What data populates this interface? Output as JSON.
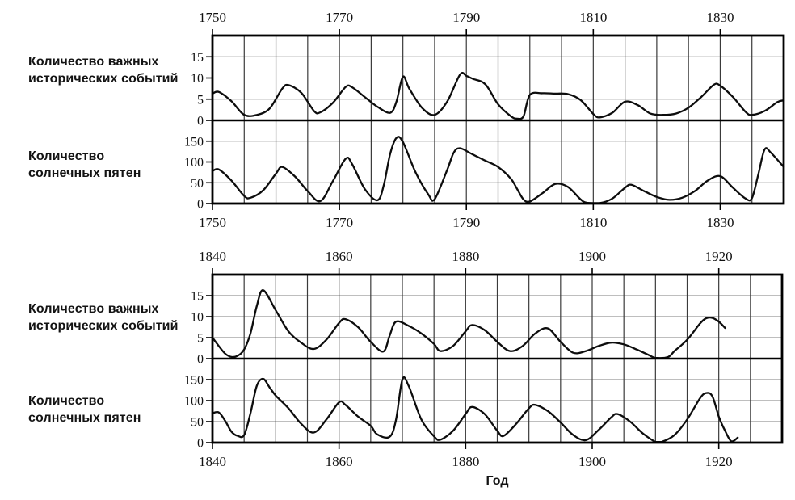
{
  "figure": {
    "xlabel": "Год",
    "row_labels": {
      "events": {
        "line1": "Количество важных",
        "line2": "исторических событий"
      },
      "sunspots": {
        "line1": "Количество",
        "line2": "солнечных пятен"
      }
    },
    "colors": {
      "background": "#ffffff",
      "curve": "#0d0d0d",
      "border": "#000000",
      "grid_vertical": "#3a3a3a",
      "grid_horizontal": "#7d7d7d",
      "text": "#131313"
    }
  },
  "chart_data": [
    {
      "type": "line",
      "panel": "1750-1840",
      "x_range": [
        1750,
        1840
      ],
      "x_labeled_ticks": [
        1750,
        1770,
        1790,
        1810,
        1830
      ],
      "x_grid_step": 5,
      "grid": true,
      "subplots": [
        {
          "name": "historical-events",
          "ylabel": "Количество важных исторических событий",
          "ylim": [
            0,
            20
          ],
          "yticks": [
            15,
            10,
            5,
            0
          ],
          "y_grid_step": 5,
          "series": [
            [
              1750,
              6.3
            ],
            [
              1751,
              6.7
            ],
            [
              1753,
              4.5
            ],
            [
              1755,
              1.3
            ],
            [
              1757,
              1.3
            ],
            [
              1759,
              2.8
            ],
            [
              1761,
              7.5
            ],
            [
              1762,
              8.3
            ],
            [
              1764,
              6.5
            ],
            [
              1766,
              2.2
            ],
            [
              1767,
              1.9
            ],
            [
              1769,
              4.2
            ],
            [
              1771,
              7.9
            ],
            [
              1772,
              7.8
            ],
            [
              1774,
              5.5
            ],
            [
              1776,
              3.2
            ],
            [
              1778,
              1.8
            ],
            [
              1779,
              4.5
            ],
            [
              1780,
              10.3
            ],
            [
              1781,
              7.5
            ],
            [
              1783,
              3
            ],
            [
              1785,
              1.3
            ],
            [
              1787,
              4.5
            ],
            [
              1789,
              10.8
            ],
            [
              1790,
              10.5
            ],
            [
              1791,
              9.8
            ],
            [
              1793,
              8.5
            ],
            [
              1795,
              3.8
            ],
            [
              1797,
              1
            ],
            [
              1798,
              0.4
            ],
            [
              1799,
              0.9
            ],
            [
              1800,
              6
            ],
            [
              1802,
              6.4
            ],
            [
              1804,
              6.3
            ],
            [
              1806,
              6.2
            ],
            [
              1808,
              4.8
            ],
            [
              1810,
              1.5
            ],
            [
              1811,
              0.7
            ],
            [
              1813,
              1.8
            ],
            [
              1815,
              4.4
            ],
            [
              1817,
              3.6
            ],
            [
              1819,
              1.6
            ],
            [
              1821,
              1.3
            ],
            [
              1823,
              1.6
            ],
            [
              1825,
              3
            ],
            [
              1827,
              5.5
            ],
            [
              1829,
              8.4
            ],
            [
              1830,
              8.2
            ],
            [
              1832,
              5.5
            ],
            [
              1834,
              2
            ],
            [
              1835,
              1.3
            ],
            [
              1837,
              2.2
            ],
            [
              1839,
              4.3
            ],
            [
              1840,
              4.7
            ]
          ]
        },
        {
          "name": "sunspots",
          "ylabel": "Количество солнечных пятен",
          "ylim": [
            0,
            200
          ],
          "yticks": [
            150,
            100,
            50,
            0
          ],
          "y_grid_step": 50,
          "series": [
            [
              1750,
              78
            ],
            [
              1751,
              82
            ],
            [
              1753,
              55
            ],
            [
              1755,
              18
            ],
            [
              1756,
              14
            ],
            [
              1758,
              32
            ],
            [
              1760,
              72
            ],
            [
              1761,
              88
            ],
            [
              1763,
              65
            ],
            [
              1765,
              30
            ],
            [
              1767,
              6
            ],
            [
              1769,
              55
            ],
            [
              1771,
              108
            ],
            [
              1772,
              95
            ],
            [
              1774,
              35
            ],
            [
              1776,
              8
            ],
            [
              1777,
              45
            ],
            [
              1778,
              120
            ],
            [
              1779,
              158
            ],
            [
              1780,
              148
            ],
            [
              1782,
              75
            ],
            [
              1784,
              22
            ],
            [
              1785,
              10
            ],
            [
              1787,
              82
            ],
            [
              1788,
              122
            ],
            [
              1789,
              133
            ],
            [
              1791,
              118
            ],
            [
              1793,
              103
            ],
            [
              1795,
              88
            ],
            [
              1797,
              60
            ],
            [
              1798,
              35
            ],
            [
              1799,
              10
            ],
            [
              1800,
              5
            ],
            [
              1802,
              25
            ],
            [
              1804,
              47
            ],
            [
              1806,
              40
            ],
            [
              1808,
              10
            ],
            [
              1809,
              2
            ],
            [
              1811,
              1
            ],
            [
              1813,
              12
            ],
            [
              1815,
              38
            ],
            [
              1816,
              45
            ],
            [
              1818,
              30
            ],
            [
              1820,
              16
            ],
            [
              1822,
              9
            ],
            [
              1824,
              14
            ],
            [
              1826,
              30
            ],
            [
              1828,
              55
            ],
            [
              1830,
              66
            ],
            [
              1832,
              38
            ],
            [
              1834,
              12
            ],
            [
              1835,
              13
            ],
            [
              1836,
              70
            ],
            [
              1837,
              130
            ],
            [
              1838,
              122
            ],
            [
              1840,
              88
            ]
          ]
        }
      ]
    },
    {
      "type": "line",
      "panel": "1840-1930",
      "x_range": [
        1840,
        1930
      ],
      "x_labeled_ticks": [
        1840,
        1860,
        1880,
        1900,
        1920
      ],
      "x_grid_step": 5,
      "grid": true,
      "subplots": [
        {
          "name": "historical-events",
          "ylabel": "Количество важных исторических событий",
          "ylim": [
            0,
            20
          ],
          "yticks": [
            15,
            10,
            5,
            0
          ],
          "y_grid_step": 5,
          "series": [
            [
              1840,
              5
            ],
            [
              1841,
              3
            ],
            [
              1842,
              1.2
            ],
            [
              1843,
              0.4
            ],
            [
              1844,
              0.7
            ],
            [
              1845,
              2.2
            ],
            [
              1846,
              6
            ],
            [
              1847,
              12.5
            ],
            [
              1848,
              16.3
            ],
            [
              1850,
              11.5
            ],
            [
              1852,
              6.5
            ],
            [
              1854,
              3.8
            ],
            [
              1856,
              2.3
            ],
            [
              1858,
              4.5
            ],
            [
              1860,
              8.5
            ],
            [
              1861,
              9.4
            ],
            [
              1863,
              7.5
            ],
            [
              1865,
              4
            ],
            [
              1867,
              1.7
            ],
            [
              1868,
              5.5
            ],
            [
              1869,
              8.8
            ],
            [
              1871,
              7.8
            ],
            [
              1873,
              6
            ],
            [
              1875,
              3.5
            ],
            [
              1876,
              1.8
            ],
            [
              1878,
              3
            ],
            [
              1880,
              6.5
            ],
            [
              1881,
              8
            ],
            [
              1883,
              6.8
            ],
            [
              1885,
              4
            ],
            [
              1887,
              1.8
            ],
            [
              1889,
              3
            ],
            [
              1891,
              6
            ],
            [
              1893,
              7.2
            ],
            [
              1895,
              4
            ],
            [
              1897,
              1.4
            ],
            [
              1899,
              1.8
            ],
            [
              1901,
              3
            ],
            [
              1903,
              3.8
            ],
            [
              1905,
              3.4
            ],
            [
              1907,
              2.2
            ],
            [
              1909,
              0.8
            ],
            [
              1910,
              0.2
            ],
            [
              1912,
              0.4
            ],
            [
              1913,
              1.8
            ],
            [
              1915,
              4.5
            ],
            [
              1917,
              8.3
            ],
            [
              1918,
              9.6
            ],
            [
              1919,
              9.7
            ],
            [
              1920,
              8.8
            ],
            [
              1921,
              7.3
            ]
          ]
        },
        {
          "name": "sunspots",
          "ylabel": "Количество солнечных пятен",
          "ylim": [
            0,
            200
          ],
          "yticks": [
            150,
            100,
            50,
            0
          ],
          "y_grid_step": 50,
          "series": [
            [
              1840,
              70
            ],
            [
              1841,
              72
            ],
            [
              1842,
              52
            ],
            [
              1843,
              26
            ],
            [
              1844,
              16
            ],
            [
              1845,
              18
            ],
            [
              1846,
              70
            ],
            [
              1847,
              135
            ],
            [
              1848,
              152
            ],
            [
              1849,
              132
            ],
            [
              1850,
              112
            ],
            [
              1852,
              82
            ],
            [
              1854,
              45
            ],
            [
              1856,
              24
            ],
            [
              1858,
              55
            ],
            [
              1860,
              96
            ],
            [
              1861,
              90
            ],
            [
              1863,
              62
            ],
            [
              1865,
              40
            ],
            [
              1866,
              20
            ],
            [
              1868,
              14
            ],
            [
              1869,
              55
            ],
            [
              1870,
              150
            ],
            [
              1871,
              135
            ],
            [
              1873,
              55
            ],
            [
              1875,
              15
            ],
            [
              1876,
              7
            ],
            [
              1878,
              28
            ],
            [
              1880,
              68
            ],
            [
              1881,
              85
            ],
            [
              1883,
              68
            ],
            [
              1885,
              28
            ],
            [
              1886,
              16
            ],
            [
              1888,
              45
            ],
            [
              1890,
              82
            ],
            [
              1891,
              90
            ],
            [
              1893,
              75
            ],
            [
              1895,
              48
            ],
            [
              1897,
              18
            ],
            [
              1899,
              6
            ],
            [
              1901,
              30
            ],
            [
              1903,
              60
            ],
            [
              1904,
              68
            ],
            [
              1906,
              50
            ],
            [
              1908,
              22
            ],
            [
              1910,
              2
            ],
            [
              1911,
              2
            ],
            [
              1913,
              18
            ],
            [
              1915,
              55
            ],
            [
              1917,
              105
            ],
            [
              1918,
              118
            ],
            [
              1919,
              110
            ],
            [
              1920,
              62
            ],
            [
              1921,
              28
            ],
            [
              1922,
              3
            ],
            [
              1923,
              12
            ]
          ]
        }
      ]
    }
  ]
}
